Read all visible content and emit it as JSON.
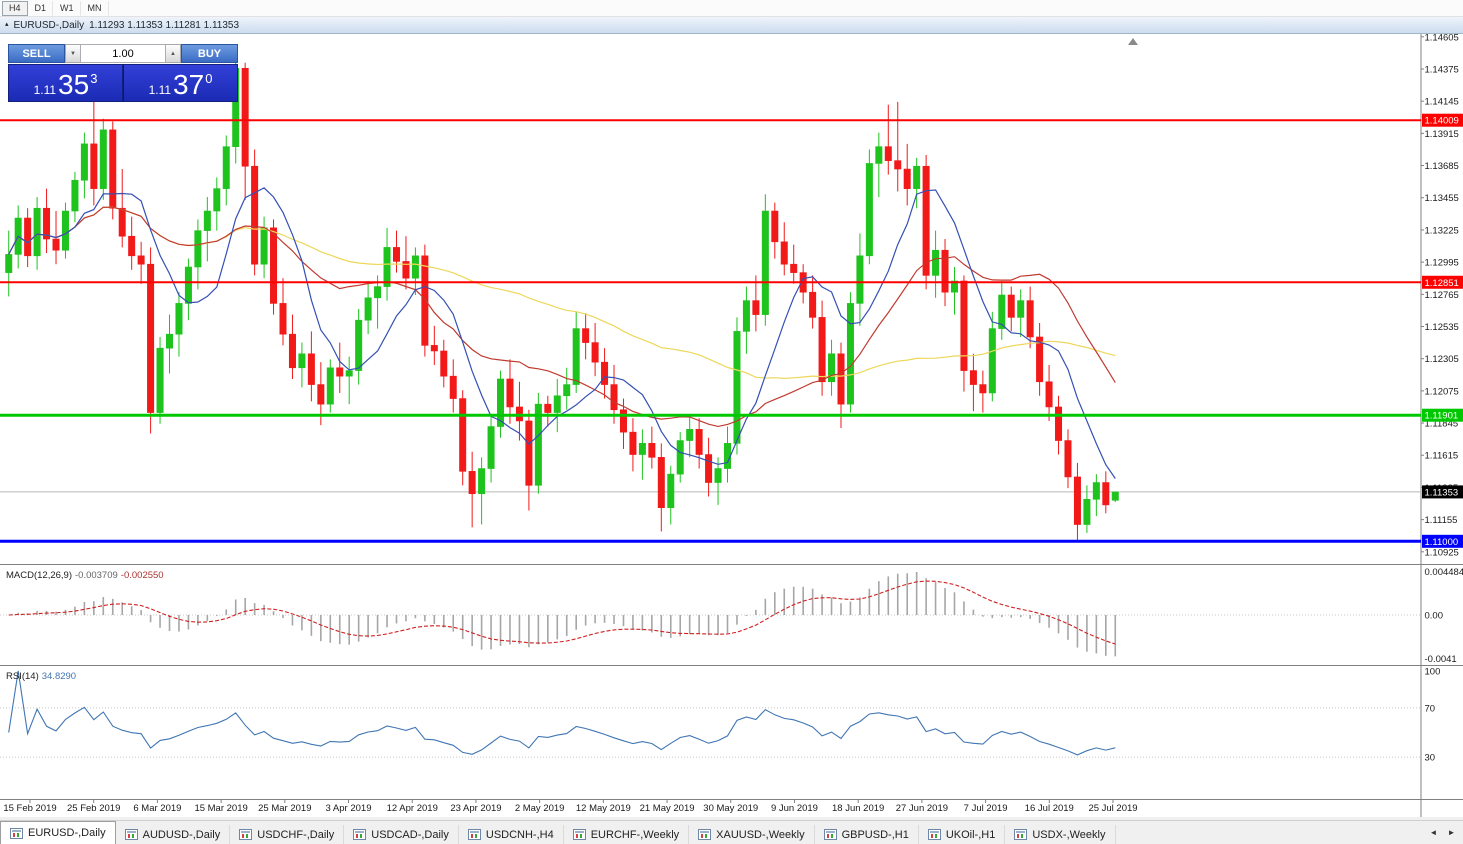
{
  "toolbar": {
    "periods": [
      {
        "label": "H4",
        "boxed": true
      },
      {
        "label": "D1",
        "boxed": false
      },
      {
        "label": "W1",
        "boxed": false
      },
      {
        "label": "MN",
        "boxed": false
      }
    ]
  },
  "chart_window": {
    "title_symbol": "EURUSD-,Daily",
    "title_ohlc": "1.11293 1.11353 1.11281 1.11353"
  },
  "trade_panel": {
    "sell_label": "SELL",
    "buy_label": "BUY",
    "volume": "1.00",
    "sell_quote": {
      "prefix": "1.11",
      "main": "35",
      "pip": "3"
    },
    "buy_quote": {
      "prefix": "1.11",
      "main": "37",
      "pip": "0"
    }
  },
  "macd_panel": {
    "name": "MACD(12,26,9)",
    "value_main": "-0.003709",
    "value_signal": "-0.002550",
    "axis_labels": [
      "0.004484",
      "0.00",
      "-0.0041"
    ]
  },
  "rsi_panel": {
    "name": "RSI(14)",
    "value": "34.8290",
    "axis_labels": [
      "100",
      "70",
      "30"
    ]
  },
  "icons": {
    "window_icon": "▴",
    "volume_down": "▼",
    "volume_up": "▲",
    "tab_prev": "◄",
    "tab_next": "►"
  },
  "tabs": {
    "items": [
      "EURUSD-,Daily",
      "AUDUSD-,Daily",
      "USDCHF-,Daily",
      "USDCAD-,Daily",
      "USDCNH-,H4",
      "EURCHF-,Weekly",
      "XAUUSD-,Weekly",
      "GBPUSD-,H1",
      "UKOil-,H1",
      "USDX-,Weekly"
    ],
    "active_index": 0
  },
  "colors": {
    "candle_up": "#1EC31E",
    "candle_down": "#F21919",
    "ma_fast": "#3450B4",
    "ma_medium": "#C03A30",
    "ma_slow": "#EDD75A",
    "macd_hist": "#A6A6A6",
    "macd_signal": "#D02020",
    "rsi_line": "#4076B4",
    "hline_red": "#FF0000",
    "hline_green": "#00C800",
    "hline_blue": "#0000FF",
    "current_badge": "#000000"
  },
  "chart_data": {
    "type": "candlestick",
    "symbol": "EURUSD-",
    "timeframe": "Daily",
    "current_ohlc": {
      "open": 1.11293,
      "high": 1.11353,
      "low": 1.11281,
      "close": 1.11353
    },
    "y_range": [
      1.10845,
      1.14625
    ],
    "price_ticks": [
      "1.14605",
      "1.14375",
      "1.14145",
      "1.13915",
      "1.13685",
      "1.13455",
      "1.13225",
      "1.12995",
      "1.12765",
      "1.12535",
      "1.12305",
      "1.12075",
      "1.11845",
      "1.11615",
      "1.11385",
      "1.11155",
      "1.10925"
    ],
    "x_labels": [
      "15 Feb 2019",
      "25 Feb 2019",
      "6 Mar 2019",
      "15 Mar 2019",
      "25 Mar 2019",
      "3 Apr 2019",
      "12 Apr 2019",
      "23 Apr 2019",
      "2 May 2019",
      "12 May 2019",
      "21 May 2019",
      "30 May 2019",
      "9 Jun 2019",
      "18 Jun 2019",
      "27 Jun 2019",
      "7 Jul 2019",
      "16 Jul 2019",
      "25 Jul 2019"
    ],
    "horizontal_lines": [
      {
        "price": 1.14009,
        "label": "1.14009",
        "color": "#FF0000",
        "width": 2
      },
      {
        "price": 1.12851,
        "label": "1.12851",
        "color": "#FF0000",
        "width": 2
      },
      {
        "price": 1.11901,
        "label": "1.11901",
        "color": "#00C800",
        "width": 3
      },
      {
        "price": 1.11,
        "label": "1.11000",
        "color": "#0000FF",
        "width": 3
      }
    ],
    "current_price": {
      "value": 1.11353,
      "label": "1.11353"
    },
    "indicators": {
      "moving_averages": [
        {
          "period": 8
        },
        {
          "period": 21
        },
        {
          "period": 55
        }
      ],
      "macd": {
        "fast": 12,
        "slow": 26,
        "signal": 9
      },
      "rsi": {
        "period": 14,
        "levels": [
          70,
          30
        ]
      }
    },
    "ohlc": [
      [
        1.1292,
        1.1322,
        1.1275,
        1.1305
      ],
      [
        1.1305,
        1.134,
        1.1295,
        1.1331
      ],
      [
        1.1331,
        1.1338,
        1.1296,
        1.1304
      ],
      [
        1.1304,
        1.1346,
        1.1294,
        1.1338
      ],
      [
        1.1338,
        1.1352,
        1.1306,
        1.1316
      ],
      [
        1.1316,
        1.1336,
        1.1298,
        1.1308
      ],
      [
        1.1308,
        1.1342,
        1.1302,
        1.1336
      ],
      [
        1.1336,
        1.1364,
        1.1328,
        1.1358
      ],
      [
        1.1358,
        1.1392,
        1.1345,
        1.1384
      ],
      [
        1.1384,
        1.1422,
        1.134,
        1.1352
      ],
      [
        1.1352,
        1.1402,
        1.1344,
        1.1394
      ],
      [
        1.1394,
        1.14,
        1.133,
        1.1338
      ],
      [
        1.1338,
        1.1366,
        1.131,
        1.1318
      ],
      [
        1.1318,
        1.1332,
        1.1294,
        1.1304
      ],
      [
        1.1304,
        1.1314,
        1.1284,
        1.1298
      ],
      [
        1.1298,
        1.131,
        1.1177,
        1.1192
      ],
      [
        1.1192,
        1.1246,
        1.1184,
        1.1238
      ],
      [
        1.1238,
        1.1262,
        1.122,
        1.1248
      ],
      [
        1.1248,
        1.1278,
        1.1232,
        1.127
      ],
      [
        1.127,
        1.1302,
        1.1258,
        1.1296
      ],
      [
        1.1296,
        1.133,
        1.128,
        1.1322
      ],
      [
        1.1322,
        1.1346,
        1.13,
        1.1336
      ],
      [
        1.1336,
        1.136,
        1.1322,
        1.1352
      ],
      [
        1.1352,
        1.139,
        1.134,
        1.1382
      ],
      [
        1.1382,
        1.1448,
        1.137,
        1.1438
      ],
      [
        1.1438,
        1.1442,
        1.1344,
        1.1368
      ],
      [
        1.1368,
        1.138,
        1.129,
        1.1298
      ],
      [
        1.1298,
        1.1332,
        1.1288,
        1.1324
      ],
      [
        1.1324,
        1.133,
        1.1262,
        1.127
      ],
      [
        1.127,
        1.1288,
        1.124,
        1.1248
      ],
      [
        1.1248,
        1.1262,
        1.1216,
        1.1224
      ],
      [
        1.1224,
        1.1242,
        1.121,
        1.1234
      ],
      [
        1.1234,
        1.125,
        1.12,
        1.1212
      ],
      [
        1.1212,
        1.1228,
        1.1183,
        1.1198
      ],
      [
        1.1198,
        1.123,
        1.1192,
        1.1224
      ],
      [
        1.1224,
        1.1242,
        1.1206,
        1.1218
      ],
      [
        1.1218,
        1.1232,
        1.1198,
        1.1222
      ],
      [
        1.1222,
        1.1266,
        1.1212,
        1.1258
      ],
      [
        1.1258,
        1.1286,
        1.1248,
        1.1274
      ],
      [
        1.1274,
        1.129,
        1.1252,
        1.1282
      ],
      [
        1.1282,
        1.1324,
        1.1272,
        1.131
      ],
      [
        1.131,
        1.1322,
        1.1292,
        1.13
      ],
      [
        1.13,
        1.1318,
        1.128,
        1.1288
      ],
      [
        1.1288,
        1.131,
        1.1276,
        1.1304
      ],
      [
        1.1304,
        1.1312,
        1.1232,
        1.124
      ],
      [
        1.124,
        1.1254,
        1.1226,
        1.1236
      ],
      [
        1.1236,
        1.1244,
        1.121,
        1.1218
      ],
      [
        1.1218,
        1.123,
        1.1192,
        1.1202
      ],
      [
        1.1202,
        1.1208,
        1.114,
        1.115
      ],
      [
        1.115,
        1.1164,
        1.111,
        1.1134
      ],
      [
        1.1134,
        1.116,
        1.1112,
        1.1152
      ],
      [
        1.1152,
        1.119,
        1.1142,
        1.1182
      ],
      [
        1.1182,
        1.1222,
        1.1174,
        1.1216
      ],
      [
        1.1216,
        1.123,
        1.1184,
        1.1196
      ],
      [
        1.1196,
        1.1214,
        1.1172,
        1.1186
      ],
      [
        1.1186,
        1.1194,
        1.1122,
        1.114
      ],
      [
        1.114,
        1.1206,
        1.1134,
        1.1198
      ],
      [
        1.1198,
        1.1204,
        1.1182,
        1.1192
      ],
      [
        1.1192,
        1.1216,
        1.1178,
        1.1204
      ],
      [
        1.1204,
        1.1224,
        1.1194,
        1.1212
      ],
      [
        1.1212,
        1.1264,
        1.1206,
        1.1252
      ],
      [
        1.1252,
        1.1263,
        1.123,
        1.1242
      ],
      [
        1.1242,
        1.1256,
        1.1218,
        1.1228
      ],
      [
        1.1228,
        1.1238,
        1.1202,
        1.1212
      ],
      [
        1.1212,
        1.1226,
        1.1184,
        1.1194
      ],
      [
        1.1194,
        1.1202,
        1.1166,
        1.1178
      ],
      [
        1.1178,
        1.1188,
        1.115,
        1.1162
      ],
      [
        1.1162,
        1.118,
        1.1144,
        1.117
      ],
      [
        1.117,
        1.1182,
        1.1152,
        1.116
      ],
      [
        1.116,
        1.117,
        1.1107,
        1.1124
      ],
      [
        1.1124,
        1.1154,
        1.1112,
        1.1148
      ],
      [
        1.1148,
        1.1178,
        1.1142,
        1.1172
      ],
      [
        1.1172,
        1.119,
        1.116,
        1.118
      ],
      [
        1.118,
        1.1188,
        1.1152,
        1.1162
      ],
      [
        1.1162,
        1.1174,
        1.1132,
        1.1142
      ],
      [
        1.1142,
        1.116,
        1.1126,
        1.1152
      ],
      [
        1.1152,
        1.1182,
        1.1142,
        1.117
      ],
      [
        1.117,
        1.126,
        1.1162,
        1.125
      ],
      [
        1.125,
        1.1282,
        1.1234,
        1.1272
      ],
      [
        1.1272,
        1.129,
        1.125,
        1.1262
      ],
      [
        1.1262,
        1.1348,
        1.1254,
        1.1336
      ],
      [
        1.1336,
        1.1342,
        1.1302,
        1.1314
      ],
      [
        1.1314,
        1.1328,
        1.129,
        1.1298
      ],
      [
        1.1298,
        1.1312,
        1.1284,
        1.1292
      ],
      [
        1.1292,
        1.1298,
        1.127,
        1.1278
      ],
      [
        1.1278,
        1.129,
        1.1252,
        1.126
      ],
      [
        1.126,
        1.1272,
        1.1204,
        1.1214
      ],
      [
        1.1214,
        1.1244,
        1.1204,
        1.1234
      ],
      [
        1.1234,
        1.1242,
        1.1181,
        1.1198
      ],
      [
        1.1198,
        1.1278,
        1.1192,
        1.127
      ],
      [
        1.127,
        1.132,
        1.1254,
        1.1304
      ],
      [
        1.1304,
        1.138,
        1.1298,
        1.137
      ],
      [
        1.137,
        1.1392,
        1.1346,
        1.1382
      ],
      [
        1.1382,
        1.1412,
        1.1362,
        1.1372
      ],
      [
        1.1372,
        1.1414,
        1.135,
        1.1366
      ],
      [
        1.1366,
        1.1384,
        1.134,
        1.1352
      ],
      [
        1.1352,
        1.1374,
        1.1338,
        1.1368
      ],
      [
        1.1368,
        1.1376,
        1.128,
        1.129
      ],
      [
        1.129,
        1.1322,
        1.1274,
        1.1308
      ],
      [
        1.1308,
        1.1316,
        1.1268,
        1.1278
      ],
      [
        1.1278,
        1.1296,
        1.1262,
        1.1286
      ],
      [
        1.1286,
        1.129,
        1.1207,
        1.1222
      ],
      [
        1.1222,
        1.1234,
        1.1193,
        1.1212
      ],
      [
        1.1212,
        1.1222,
        1.1192,
        1.1206
      ],
      [
        1.1206,
        1.1264,
        1.12,
        1.1252
      ],
      [
        1.1252,
        1.1286,
        1.1244,
        1.1276
      ],
      [
        1.1276,
        1.1282,
        1.125,
        1.126
      ],
      [
        1.126,
        1.128,
        1.1246,
        1.1272
      ],
      [
        1.1272,
        1.1282,
        1.1238,
        1.1246
      ],
      [
        1.1246,
        1.1256,
        1.1204,
        1.1214
      ],
      [
        1.1214,
        1.1226,
        1.1186,
        1.1196
      ],
      [
        1.1196,
        1.1204,
        1.1162,
        1.1172
      ],
      [
        1.1172,
        1.118,
        1.1138,
        1.1146
      ],
      [
        1.1146,
        1.1156,
        1.1101,
        1.1112
      ],
      [
        1.1112,
        1.114,
        1.1106,
        1.113
      ],
      [
        1.113,
        1.1148,
        1.1118,
        1.1142
      ],
      [
        1.1142,
        1.115,
        1.112,
        1.1126
      ],
      [
        1.11293,
        1.11353,
        1.11281,
        1.11353
      ]
    ]
  }
}
